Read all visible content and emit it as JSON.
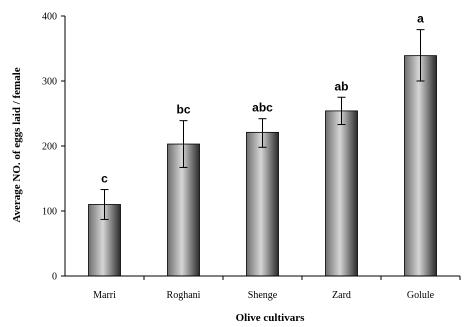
{
  "chart_data": {
    "type": "bar",
    "title": "",
    "xlabel": "Olive cultivars",
    "ylabel": "Average NO. of  eggs laid  / female",
    "ylim": [
      0,
      400
    ],
    "yticks": [
      0,
      100,
      200,
      300,
      400
    ],
    "ytick_labels": [
      "0",
      "100",
      "200",
      "300",
      "400"
    ],
    "categories": [
      "Marri",
      "Roghani",
      "Shenge",
      "Zard",
      "Golule"
    ],
    "values": [
      110,
      203,
      221,
      254,
      339
    ],
    "error_plus": [
      23,
      36,
      21,
      21,
      40
    ],
    "error_minus": [
      23,
      36,
      23,
      21,
      39
    ],
    "significance_labels": [
      "c",
      "bc",
      "abc",
      "ab",
      "a"
    ],
    "grid": false,
    "legend": "none"
  }
}
